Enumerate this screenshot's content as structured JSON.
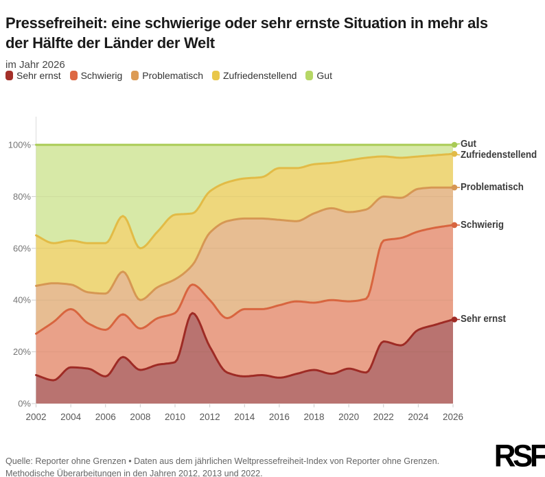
{
  "header": {
    "title": "Pressefreiheit: eine schwierige oder sehr ernste Situation in mehr als\nder Hälfte der Länder der Welt",
    "subtitle": "im Jahr 2026"
  },
  "legend": {
    "items": [
      {
        "label": "Sehr ernst",
        "color": "#a43029"
      },
      {
        "label": "Schwierig",
        "color": "#dd6843"
      },
      {
        "label": "Problematisch",
        "color": "#dc9b55"
      },
      {
        "label": "Zufriedenstellend",
        "color": "#e9c74a"
      },
      {
        "label": "Gut",
        "color": "#b6d766"
      }
    ]
  },
  "chart_data": {
    "type": "area",
    "stacked": true,
    "unit": "%",
    "x": [
      2002,
      2003,
      2004,
      2005,
      2006,
      2007,
      2008,
      2009,
      2010,
      2011,
      2012,
      2013,
      2014,
      2015,
      2016,
      2017,
      2018,
      2019,
      2020,
      2021,
      2022,
      2023,
      2024,
      2025,
      2026
    ],
    "series": [
      {
        "name": "Sehr ernst",
        "line_color": "#9e2b25",
        "fill_color": "#b97370",
        "values": [
          11,
          9,
          14,
          13.5,
          10.5,
          18,
          13,
          15,
          16,
          35,
          22,
          12,
          10.5,
          11,
          10,
          11.5,
          13,
          11.5,
          13.5,
          12,
          24,
          22.5,
          28.5,
          30.5,
          32.5
        ]
      },
      {
        "name": "Schwierig",
        "line_color": "#d8653f",
        "fill_color": "#e9a189",
        "values": [
          16,
          22.5,
          22.5,
          17.5,
          18,
          16.5,
          16,
          18,
          19,
          11,
          18,
          21,
          26,
          25.5,
          28,
          28,
          26,
          28.5,
          26,
          28.5,
          39,
          41.5,
          38,
          37.5,
          36.5
        ]
      },
      {
        "name": "Problematisch",
        "line_color": "#d69753",
        "fill_color": "#e7bd92",
        "values": [
          18.5,
          15,
          9.5,
          12,
          14,
          16.5,
          11,
          12,
          13,
          7.5,
          26,
          37.5,
          35,
          35,
          33,
          31,
          34.5,
          35.5,
          34.5,
          34.5,
          17,
          15.5,
          16.5,
          15.5,
          14.5
        ]
      },
      {
        "name": "Zufriedenstellend",
        "line_color": "#e2bb46",
        "fill_color": "#eed77c",
        "values": [
          19.5,
          15.5,
          17,
          19,
          19.5,
          21.5,
          20,
          21.5,
          25,
          20,
          16,
          15,
          15.5,
          16,
          20,
          20.5,
          19,
          17.5,
          20,
          20,
          15.5,
          15.5,
          12.5,
          12.5,
          13
        ]
      },
      {
        "name": "Gut",
        "line_color": "#a9cb55",
        "fill_color": "#d7e9a7",
        "values": [
          35,
          38,
          37,
          38,
          38,
          27.5,
          40,
          33.5,
          27,
          26.5,
          18,
          14.5,
          13,
          12.5,
          9,
          9,
          7.5,
          7,
          6,
          5,
          4.5,
          5,
          4.5,
          4,
          3.5
        ]
      }
    ],
    "ylim": [
      0,
      100
    ],
    "yticks": [
      0,
      20,
      40,
      60,
      80,
      100
    ],
    "xticks": [
      2002,
      2004,
      2006,
      2008,
      2010,
      2012,
      2014,
      2016,
      2018,
      2020,
      2022,
      2024,
      2026
    ],
    "legend_position": "top",
    "grid": true
  },
  "footer": {
    "source": "Quelle: Reporter ohne Grenzen • Daten aus dem jährlichen Weltpressefreiheit-Index von Reporter ohne Grenzen.\nMethodische Überarbeitungen in den Jahren 2012, 2013 und 2022.",
    "logo_text": "RSF"
  }
}
